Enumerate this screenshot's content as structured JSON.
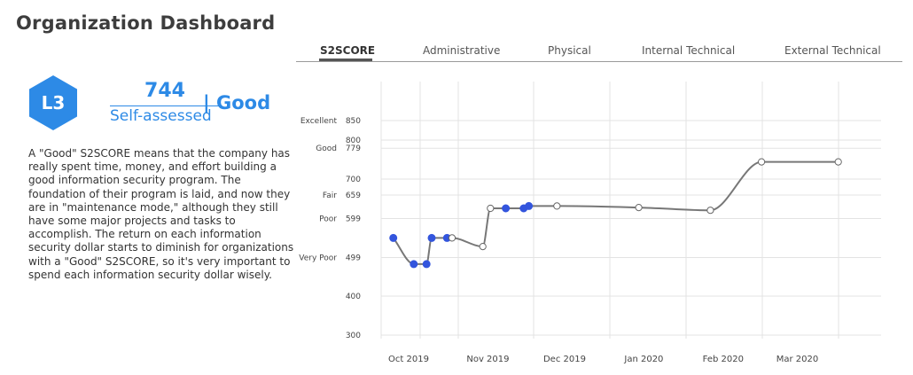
{
  "page": {
    "title": "Organization Dashboard"
  },
  "tabs": [
    {
      "label": "S2SCORE",
      "active": true
    },
    {
      "label": "Administrative",
      "active": false
    },
    {
      "label": "Physical",
      "active": false
    },
    {
      "label": "Internal Technical",
      "active": false
    },
    {
      "label": "External Technical",
      "active": false
    }
  ],
  "score": {
    "level": "L3",
    "value": "744",
    "type": "Self-assessed",
    "rating": "| Good",
    "badge_color": "#2d8ae6"
  },
  "description": "A \"Good\" S2SCORE means that the company has really spent time, money, and effort building a good information security program. The foundation of their program is laid, and now they are in \"maintenance mode,\" although they still have some major projects and tasks to accomplish. The return on each information security dollar starts to diminish for organizations with a \"Good\" S2SCORE, so it's very important to spend each information security dollar wisely.",
  "chart_data": {
    "type": "line",
    "ylim": [
      300,
      850
    ],
    "y_ticks": [
      300,
      400,
      499,
      599,
      659,
      700,
      779,
      800,
      850
    ],
    "y_categories": [
      {
        "label": "Excellent",
        "value": 850
      },
      {
        "label": "Good",
        "value": 779
      },
      {
        "label": "Fair",
        "value": 659
      },
      {
        "label": "Poor",
        "value": 599
      },
      {
        "label": "Very Poor",
        "value": 499
      }
    ],
    "x_ticks": [
      {
        "label": "Oct 2019",
        "value": 0
      },
      {
        "label": "Nov 2019",
        "value": 31
      },
      {
        "label": "Dec 2019",
        "value": 61
      },
      {
        "label": "Jan 2020",
        "value": 92
      },
      {
        "label": "Feb 2020",
        "value": 123
      },
      {
        "label": "Mar 2020",
        "value": 152
      }
    ],
    "xlim": [
      -10,
      187
    ],
    "line_color": "#777777",
    "point_colors": {
      "filled": "#3355dd",
      "hollow": "#ffffff"
    },
    "series": [
      {
        "points": [
          {
            "x": -6,
            "y": 549,
            "filled": true
          },
          {
            "x": 2,
            "y": 482,
            "filled": true
          },
          {
            "x": 7,
            "y": 482,
            "filled": true
          },
          {
            "x": 9,
            "y": 549,
            "filled": true
          },
          {
            "x": 15,
            "y": 549,
            "filled": true
          },
          {
            "x": 17,
            "y": 549,
            "filled": false
          },
          {
            "x": 29,
            "y": 527,
            "filled": false
          },
          {
            "x": 32,
            "y": 625,
            "filled": false
          },
          {
            "x": 38,
            "y": 625,
            "filled": true
          },
          {
            "x": 45,
            "y": 625,
            "filled": true
          },
          {
            "x": 47,
            "y": 631,
            "filled": true
          },
          {
            "x": 58,
            "y": 631,
            "filled": false
          },
          {
            "x": 90,
            "y": 627,
            "filled": false
          },
          {
            "x": 118,
            "y": 620,
            "filled": false
          },
          {
            "x": 138,
            "y": 744,
            "filled": false
          },
          {
            "x": 168,
            "y": 744,
            "filled": false
          }
        ]
      }
    ]
  }
}
